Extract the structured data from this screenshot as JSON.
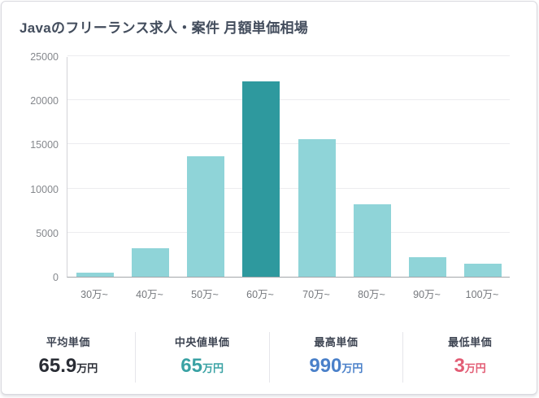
{
  "card": {
    "title": "Javaのフリーランス求人・案件 月額単価相場"
  },
  "chart_data": {
    "type": "bar",
    "title": "Javaのフリーランス求人・案件 月額単価相場",
    "categories": [
      "30万~",
      "40万~",
      "50万~",
      "60万~",
      "70万~",
      "80万~",
      "90万~",
      "100万~"
    ],
    "values": [
      450,
      3200,
      13650,
      22100,
      15600,
      8200,
      2250,
      1500
    ],
    "highlight_index": 3,
    "bar_color": "#8fd4d8",
    "highlight_color": "#2e999e",
    "xlabel": "",
    "ylabel": "",
    "ylim": [
      0,
      25000
    ],
    "yticks": [
      0,
      5000,
      10000,
      15000,
      20000,
      25000
    ],
    "grid": true,
    "legend": false,
    "gridline_color": "#ececef"
  },
  "stats": {
    "items": [
      {
        "label": "平均単価",
        "value": "65.9",
        "unit": "万円",
        "color": "#2a2d35"
      },
      {
        "label": "中央値単価",
        "value": "65",
        "unit": "万円",
        "color": "#3aa2a4"
      },
      {
        "label": "最高単価",
        "value": "990",
        "unit": "万円",
        "color": "#4a80c9"
      },
      {
        "label": "最低単価",
        "value": "3",
        "unit": "万円",
        "color": "#e25c74"
      }
    ]
  }
}
